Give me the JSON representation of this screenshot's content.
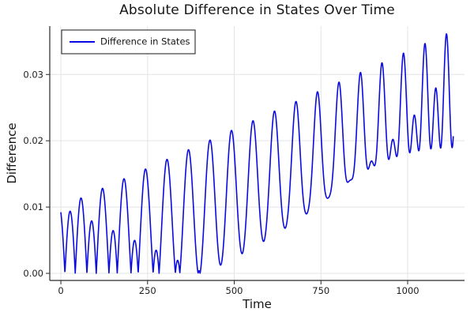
{
  "chart_data": {
    "type": "line",
    "title": "Absolute Difference in States Over Time",
    "xlabel": "Time",
    "ylabel": "Difference",
    "xlim": [
      -32,
      1164
    ],
    "ylim": [
      -0.00107,
      0.0373
    ],
    "xticks": [
      {
        "value": 0,
        "label": "0"
      },
      {
        "value": 250,
        "label": "250"
      },
      {
        "value": 500,
        "label": "500"
      },
      {
        "value": 750,
        "label": "750"
      },
      {
        "value": 1000,
        "label": "1000"
      }
    ],
    "yticks": [
      {
        "value": 0.0,
        "label": "0.00"
      },
      {
        "value": 0.01,
        "label": "0.01"
      },
      {
        "value": 0.02,
        "label": "0.02"
      },
      {
        "value": 0.03,
        "label": "0.03"
      }
    ],
    "grid": true,
    "grid_color": "#e4e4e4",
    "axis_color": "#2a2a2a",
    "tick_label_color": "#1d1d1d",
    "background": "#ffffff",
    "legend": {
      "position": "top-left",
      "border_color": "#2a2a2a",
      "fill": "#ffffff",
      "entries": [
        {
          "label": "Difference in States",
          "color": "#0b0bdf"
        }
      ]
    },
    "series": [
      {
        "name": "Difference in States",
        "color": "#0b0bdf",
        "line_width": 1.6,
        "description": "Absolute difference between two simulated state trajectories: oscillating humps every ~31 time units; upper envelope grows ~0.010 at t=0 to ~0.037 at t=1130; lower envelope stays at 0 (cusps) until t~450 then rises to ~0.017-0.019; secondary double-peak/notch structure develops after t~600.",
        "envelope": {
          "hump_period": 31,
          "peak_start": 0.01,
          "peak_end": 0.037,
          "trough_start": 0.0,
          "trough_liftoff_t": 450,
          "trough_end": 0.017
        },
        "generator": {
          "formula": "value(t) = | offset_slope*t - B(t)*sin(theta) - D(t)*cos(2*theta) |, theta = 2*pi*(t - t0)/period, D(t) = harmonic_max*(t/t_ref)^harmonic_power, B(t) = amp_total - D(t)",
          "t_start": 0,
          "t_end": 1132,
          "t_step": 0.6,
          "t0": 11.4,
          "period": 62,
          "offset_slope": 2.35e-05,
          "amp_total": 0.01,
          "harmonic_max": 0.0075,
          "harmonic_power": 4,
          "t_ref": 1130
        }
      }
    ]
  }
}
